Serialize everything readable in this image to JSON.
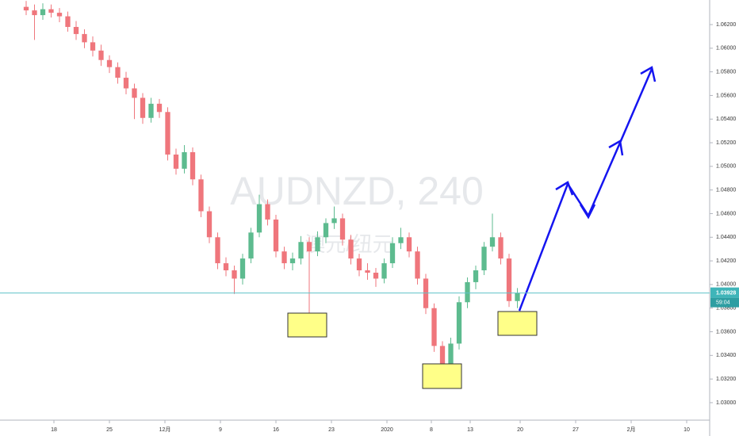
{
  "chart_data": {
    "type": "candlestick",
    "title": "AUDNZD, 240",
    "subtitle": "澳元/纽元",
    "up_color": "#5dbb8f",
    "down_color": "#ef767c",
    "grid": false,
    "xlim": [
      -4.857,
      59.07
    ],
    "ylim": [
      1.02852,
      1.06408
    ],
    "xticks": [
      {
        "value": 0,
        "label": "18"
      },
      {
        "value": 5,
        "label": "25"
      },
      {
        "value": 10,
        "label": "12月"
      },
      {
        "value": 15,
        "label": "9"
      },
      {
        "value": 20,
        "label": "16"
      },
      {
        "value": 25,
        "label": "23"
      },
      {
        "value": 30,
        "label": "2020"
      },
      {
        "value": 34,
        "label": "8"
      },
      {
        "value": 37.5,
        "label": "13"
      },
      {
        "value": 42,
        "label": "20"
      },
      {
        "value": 47,
        "label": "27"
      },
      {
        "value": 52,
        "label": "2月"
      },
      {
        "value": 57,
        "label": "10"
      }
    ],
    "yticks": [
      {
        "value": 1.03,
        "label": "1.03000"
      },
      {
        "value": 1.032,
        "label": "1.03200"
      },
      {
        "value": 1.034,
        "label": "1.03400"
      },
      {
        "value": 1.036,
        "label": "1.03600"
      },
      {
        "value": 1.038,
        "label": "1.03800"
      },
      {
        "value": 1.04,
        "label": "1.04000"
      },
      {
        "value": 1.042,
        "label": "1.04200"
      },
      {
        "value": 1.044,
        "label": "1.04400"
      },
      {
        "value": 1.046,
        "label": "1.04600"
      },
      {
        "value": 1.048,
        "label": "1.04800"
      },
      {
        "value": 1.05,
        "label": "1.05000"
      },
      {
        "value": 1.052,
        "label": "1.05200"
      },
      {
        "value": 1.054,
        "label": "1.05400"
      },
      {
        "value": 1.056,
        "label": "1.05600"
      },
      {
        "value": 1.058,
        "label": "1.05800"
      },
      {
        "value": 1.06,
        "label": "1.06000"
      },
      {
        "value": 1.062,
        "label": "1.06200"
      }
    ],
    "last_price": 1.03928,
    "countdown": "59:04",
    "x": [
      -2.5,
      -1.75,
      -1,
      -0.25,
      0.5,
      1.25,
      2,
      2.75,
      3.5,
      4.25,
      5,
      5.75,
      6.5,
      7.25,
      8,
      8.75,
      9.5,
      10.25,
      11,
      11.75,
      12.5,
      13.25,
      14,
      14.75,
      15.5,
      16.25,
      17,
      17.75,
      18.5,
      19.25,
      20,
      20.75,
      21.5,
      22.25,
      23,
      23.75,
      24.5,
      25.25,
      26,
      26.75,
      27.5,
      28.25,
      29,
      29.75,
      30.5,
      31.25,
      32,
      32.75,
      33.5,
      34.25,
      35,
      35.75,
      36.5,
      37.25,
      38,
      38.75,
      39.5,
      40.25,
      41,
      41.75
    ],
    "ohlc": [
      [
        1.0635,
        1.064,
        1.0628,
        1.0632
      ],
      [
        1.0632,
        1.0637,
        1.0607,
        1.0628
      ],
      [
        1.0628,
        1.0638,
        1.0624,
        1.0633
      ],
      [
        1.0633,
        1.0637,
        1.0626,
        1.063
      ],
      [
        1.063,
        1.0634,
        1.0622,
        1.0627
      ],
      [
        1.0627,
        1.0631,
        1.0614,
        1.0618
      ],
      [
        1.0618,
        1.0623,
        1.0607,
        1.0612
      ],
      [
        1.0612,
        1.0616,
        1.06,
        1.0605
      ],
      [
        1.0605,
        1.061,
        1.0593,
        1.0598
      ],
      [
        1.0598,
        1.0603,
        1.0585,
        1.059
      ],
      [
        1.059,
        1.0594,
        1.0579,
        1.0584
      ],
      [
        1.0584,
        1.0588,
        1.057,
        1.0575
      ],
      [
        1.0575,
        1.058,
        1.0561,
        1.0566
      ],
      [
        1.0566,
        1.057,
        1.054,
        1.0558
      ],
      [
        1.0558,
        1.0562,
        1.0536,
        1.0541
      ],
      [
        1.0541,
        1.0558,
        1.0537,
        1.0553
      ],
      [
        1.0553,
        1.0557,
        1.0541,
        1.0546
      ],
      [
        1.0546,
        1.055,
        1.0505,
        1.051
      ],
      [
        1.051,
        1.0515,
        1.0493,
        1.0498
      ],
      [
        1.0498,
        1.0518,
        1.0494,
        1.0512
      ],
      [
        1.0512,
        1.0516,
        1.0484,
        1.0489
      ],
      [
        1.0489,
        1.0493,
        1.0457,
        1.0462
      ],
      [
        1.0462,
        1.0466,
        1.0435,
        1.044
      ],
      [
        1.044,
        1.0444,
        1.0413,
        1.0418
      ],
      [
        1.0418,
        1.0423,
        1.0407,
        1.0412
      ],
      [
        1.0412,
        1.0416,
        1.0392,
        1.0405
      ],
      [
        1.0405,
        1.0426,
        1.04,
        1.0422
      ],
      [
        1.0422,
        1.0448,
        1.0418,
        1.0444
      ],
      [
        1.0444,
        1.0476,
        1.044,
        1.0468
      ],
      [
        1.0468,
        1.0472,
        1.045,
        1.0455
      ],
      [
        1.0455,
        1.0459,
        1.0423,
        1.0428
      ],
      [
        1.0428,
        1.0432,
        1.0413,
        1.0418
      ],
      [
        1.0418,
        1.0427,
        1.0412,
        1.0422
      ],
      [
        1.0422,
        1.0441,
        1.0417,
        1.0436
      ],
      [
        1.0436,
        1.044,
        1.0364,
        1.0428
      ],
      [
        1.0428,
        1.0445,
        1.0424,
        1.044
      ],
      [
        1.044,
        1.0456,
        1.0435,
        1.0452
      ],
      [
        1.0452,
        1.0466,
        1.0447,
        1.0456
      ],
      [
        1.0456,
        1.046,
        1.0433,
        1.0438
      ],
      [
        1.0438,
        1.0442,
        1.0417,
        1.0422
      ],
      [
        1.0422,
        1.0426,
        1.0407,
        1.0412
      ],
      [
        1.0412,
        1.0418,
        1.0404,
        1.041
      ],
      [
        1.041,
        1.0414,
        1.0398,
        1.0405
      ],
      [
        1.0405,
        1.0422,
        1.0401,
        1.0418
      ],
      [
        1.0418,
        1.044,
        1.0414,
        1.0435
      ],
      [
        1.0435,
        1.0448,
        1.043,
        1.044
      ],
      [
        1.044,
        1.0444,
        1.0423,
        1.0428
      ],
      [
        1.0428,
        1.0432,
        1.04,
        1.0405
      ],
      [
        1.0405,
        1.0409,
        1.0375,
        1.038
      ],
      [
        1.038,
        1.0384,
        1.0343,
        1.0348
      ],
      [
        1.0348,
        1.0352,
        1.0316,
        1.0325
      ],
      [
        1.0325,
        1.0355,
        1.032,
        1.035
      ],
      [
        1.035,
        1.039,
        1.0345,
        1.0385
      ],
      [
        1.0385,
        1.0406,
        1.038,
        1.0402
      ],
      [
        1.0402,
        1.0416,
        1.0396,
        1.0412
      ],
      [
        1.0412,
        1.0436,
        1.0408,
        1.0432
      ],
      [
        1.0432,
        1.046,
        1.0428,
        1.044
      ],
      [
        1.044,
        1.0444,
        1.0417,
        1.0422
      ],
      [
        1.0422,
        1.0426,
        1.0381,
        1.0386
      ],
      [
        1.0386,
        1.0397,
        1.038,
        1.03928
      ]
    ]
  }
}
